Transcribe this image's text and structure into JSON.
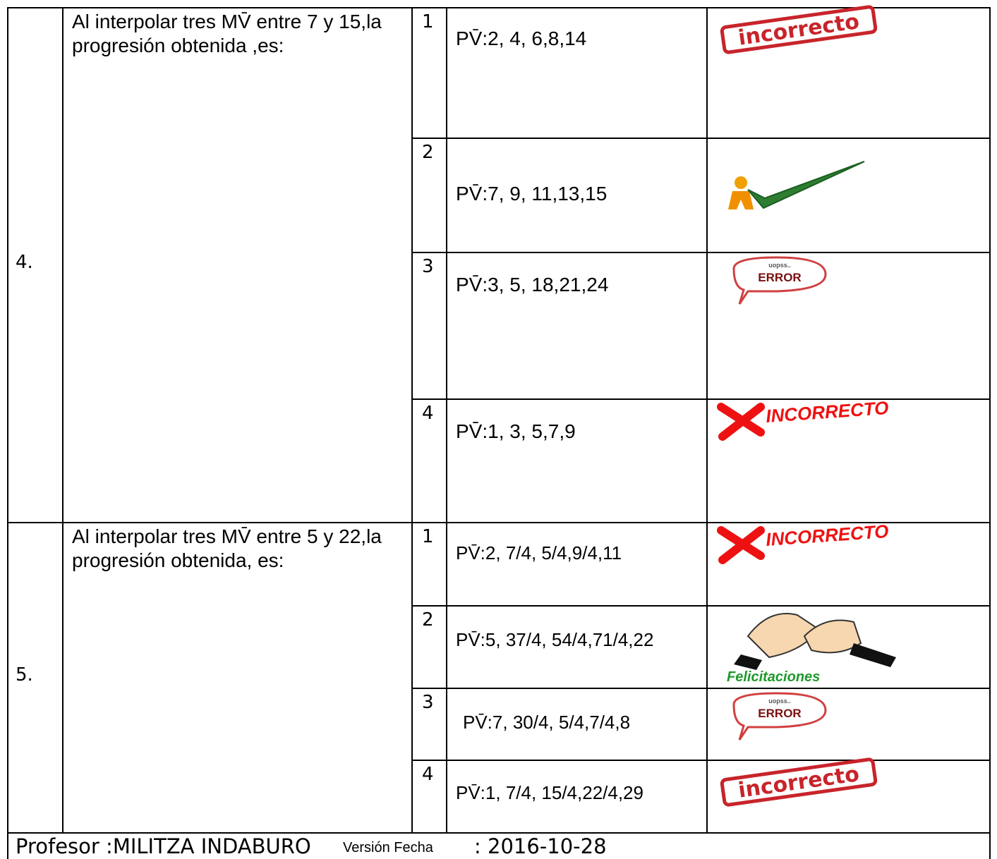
{
  "questions": [
    {
      "number": "4.",
      "text": "Al interpolar tres MV̄ entre 7 y 15,la progresión obtenida ,es:",
      "options": [
        {
          "n": "1",
          "text": "PV̄:2, 4, 6,8,14",
          "stamp": {
            "kind": "stamp",
            "label": "incorrecto"
          }
        },
        {
          "n": "2",
          "text": "PV̄:7, 9, 11,13,15",
          "stamp": {
            "kind": "check"
          }
        },
        {
          "n": "3",
          "text": "PV̄:3, 5, 18,21,24",
          "stamp": {
            "kind": "bubble",
            "small": "uopss..",
            "label": "ERROR"
          }
        },
        {
          "n": "4",
          "text": "PV̄:1, 3, 5,7,9",
          "stamp": {
            "kind": "cross",
            "label": "INCORRECTO"
          }
        }
      ]
    },
    {
      "number": "5.",
      "text": "Al interpolar tres MV̄ entre 5 y 22,la progresión obtenida, es:",
      "options": [
        {
          "n": "1",
          "text": "PV̄:2, 7/4, 5/4,9/4,11",
          "stamp": {
            "kind": "cross",
            "label": "INCORRECTO"
          }
        },
        {
          "n": "2",
          "text": "PV̄:5, 37/4, 54/4,71/4,22",
          "stamp": {
            "kind": "clap",
            "label": "Felicitaciones"
          }
        },
        {
          "n": "3",
          "text": "PV̄:7, 30/4, 5/4,7/4,8",
          "stamp": {
            "kind": "bubble",
            "small": "uopss..",
            "label": "ERROR"
          }
        },
        {
          "n": "4",
          "text": "PV̄:1, 7/4, 15/4,22/4,29",
          "stamp": {
            "kind": "stamp",
            "label": "incorrecto"
          }
        }
      ]
    }
  ],
  "footer": {
    "teacher": "Profesor :MILITZA INDABURO",
    "version": "Versión Fecha",
    "date": ": 2016-10-28"
  }
}
